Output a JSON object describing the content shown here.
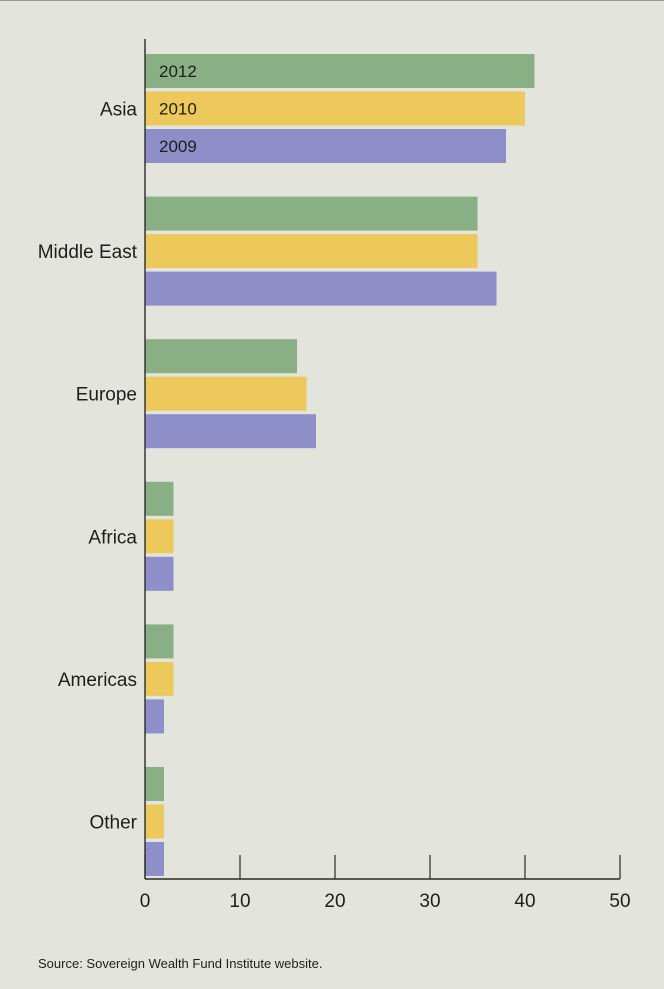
{
  "chart_data": {
    "type": "bar",
    "orientation": "horizontal",
    "categories": [
      "Asia",
      "Middle East",
      "Europe",
      "Africa",
      "Americas",
      "Other"
    ],
    "series": [
      {
        "name": "2012",
        "values": [
          41,
          35,
          16,
          3,
          3,
          2
        ],
        "color": "#88b084"
      },
      {
        "name": "2010",
        "values": [
          40,
          35,
          17,
          3,
          3,
          2
        ],
        "color": "#ecc95a"
      },
      {
        "name": "2009",
        "values": [
          38,
          37,
          18,
          3,
          2,
          2
        ],
        "color": "#8e8ec8"
      }
    ],
    "xlim": [
      0,
      50
    ],
    "xticks": [
      0,
      10,
      20,
      30,
      40,
      50
    ],
    "legend": "inside-bars-first-category",
    "grid": false,
    "title": "",
    "xlabel": "",
    "ylabel": ""
  },
  "footer": {
    "source": "Source: Sovereign Wealth Fund Institute website."
  }
}
